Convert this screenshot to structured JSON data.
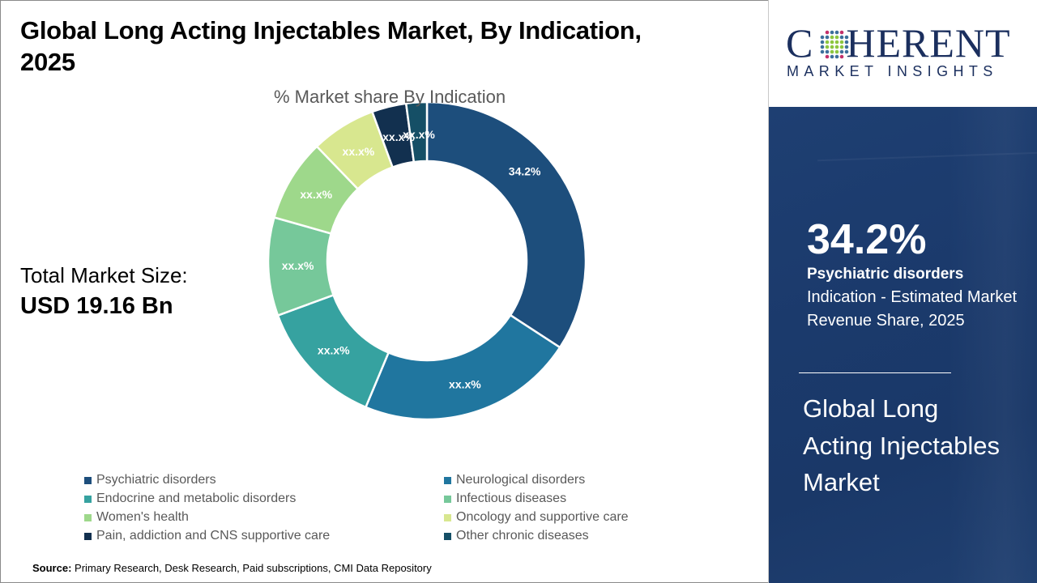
{
  "header": {
    "title": "Global Long Acting Injectables Market, By Indication, 2025"
  },
  "market_size": {
    "label": "Total Market Size:",
    "value": "USD 19.16 Bn"
  },
  "source": {
    "label": "Source:",
    "text": "Primary Research, Desk Research, Paid subscriptions, CMI Data Repository"
  },
  "logo": {
    "word_first": "C",
    "word_rest": "HERENT",
    "subtitle": "MARKET INSIGHTS",
    "globe_icon": "dotted-globe-icon"
  },
  "highlight": {
    "percent": "34.2%",
    "segment": "Psychiatric disorders",
    "description": "Indication - Estimated Market Revenue Share, 2025",
    "market_name": "Global Long Acting Injectables Market"
  },
  "colors": {
    "panel_blue": "#1b3a6c",
    "logo_navy": "#1b2f5e"
  },
  "chart_data": {
    "type": "pie",
    "variant": "donut",
    "title": "% Market share By Indication",
    "start_angle": "12 o'clock",
    "direction": "clockwise",
    "legend_position": "bottom",
    "categories": [
      "Psychiatric disorders",
      "Neurological disorders",
      "Endocrine and metabolic disorders",
      "Infectious diseases",
      "Women's health",
      "Oncology and supportive care",
      "Pain, addiction and CNS supportive care",
      "Other chronic diseases"
    ],
    "values": [
      34.2,
      22.1,
      13.1,
      10.0,
      8.4,
      6.6,
      3.5,
      2.1
    ],
    "data_labels": [
      "34.2%",
      "xx.x%",
      "xx.x%",
      "xx.x%",
      "xx.x%",
      "xx.x%",
      "xx.x%",
      "xx.x%"
    ],
    "colors": [
      "#1d4e7c",
      "#20769f",
      "#36a2a0",
      "#76c89a",
      "#9ed88b",
      "#d8e78f",
      "#12304f",
      "#154f66"
    ]
  }
}
